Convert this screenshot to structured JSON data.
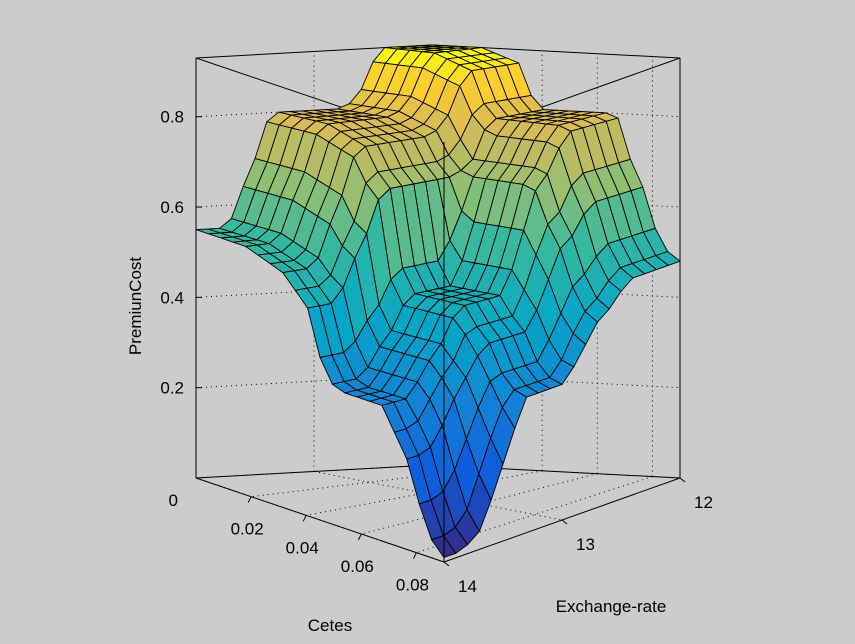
{
  "chart_data": {
    "type": "surface",
    "title": "",
    "xlabel": "Cetes",
    "ylabel": "Exchange-rate",
    "zlabel": "PremiunCost",
    "x_ticks": [
      "0",
      "0.02",
      "0.04",
      "0.06",
      "0.08"
    ],
    "y_ticks": [
      "12",
      "13",
      "14"
    ],
    "z_ticks": [
      "0.2",
      "0.4",
      "0.6",
      "0.8"
    ],
    "x_range": [
      0,
      0.09
    ],
    "y_range": [
      12,
      14
    ],
    "z_range": [
      0,
      0.93
    ],
    "x": [
      0,
      0.0045,
      0.009,
      0.0135,
      0.018,
      0.0225,
      0.027,
      0.0315,
      0.036,
      0.0405,
      0.045,
      0.0495,
      0.054,
      0.0585,
      0.063,
      0.0675,
      0.072,
      0.0765,
      0.081,
      0.0855,
      0.09
    ],
    "y": [
      12,
      12.1,
      12.2,
      12.3,
      12.4,
      12.5,
      12.6,
      12.7,
      12.8,
      12.9,
      13,
      13.1,
      13.2,
      13.3,
      13.4,
      13.5,
      13.6,
      13.7,
      13.8,
      13.9,
      14
    ],
    "z": [
      [
        0.93,
        0.93,
        0.93,
        0.93,
        0.93,
        0.92,
        0.91,
        0.9,
        0.83,
        0.8,
        0.8,
        0.8,
        0.8,
        0.8,
        0.8,
        0.79,
        0.7,
        0.64,
        0.55,
        0.5,
        0.48
      ],
      [
        0.93,
        0.93,
        0.93,
        0.93,
        0.93,
        0.92,
        0.91,
        0.9,
        0.83,
        0.8,
        0.8,
        0.8,
        0.8,
        0.8,
        0.8,
        0.79,
        0.7,
        0.64,
        0.55,
        0.5,
        0.48
      ],
      [
        0.93,
        0.93,
        0.93,
        0.93,
        0.93,
        0.92,
        0.91,
        0.9,
        0.83,
        0.8,
        0.8,
        0.8,
        0.8,
        0.8,
        0.8,
        0.79,
        0.7,
        0.64,
        0.55,
        0.5,
        0.48
      ],
      [
        0.93,
        0.93,
        0.93,
        0.93,
        0.93,
        0.92,
        0.91,
        0.9,
        0.83,
        0.8,
        0.8,
        0.8,
        0.8,
        0.8,
        0.8,
        0.79,
        0.7,
        0.64,
        0.55,
        0.5,
        0.48
      ],
      [
        0.93,
        0.93,
        0.93,
        0.93,
        0.93,
        0.92,
        0.91,
        0.9,
        0.83,
        0.8,
        0.8,
        0.8,
        0.8,
        0.8,
        0.8,
        0.79,
        0.7,
        0.64,
        0.55,
        0.5,
        0.48
      ],
      [
        0.9,
        0.9,
        0.9,
        0.9,
        0.9,
        0.89,
        0.88,
        0.87,
        0.81,
        0.78,
        0.77,
        0.77,
        0.77,
        0.77,
        0.77,
        0.76,
        0.68,
        0.62,
        0.53,
        0.48,
        0.46
      ],
      [
        0.84,
        0.84,
        0.84,
        0.84,
        0.84,
        0.83,
        0.82,
        0.81,
        0.76,
        0.72,
        0.72,
        0.72,
        0.72,
        0.72,
        0.72,
        0.71,
        0.63,
        0.58,
        0.5,
        0.45,
        0.43
      ],
      [
        0.81,
        0.81,
        0.81,
        0.81,
        0.81,
        0.8,
        0.79,
        0.78,
        0.73,
        0.7,
        0.69,
        0.69,
        0.69,
        0.69,
        0.69,
        0.68,
        0.61,
        0.56,
        0.48,
        0.43,
        0.41
      ],
      [
        0.8,
        0.8,
        0.8,
        0.8,
        0.8,
        0.79,
        0.78,
        0.77,
        0.72,
        0.69,
        0.62,
        0.6,
        0.6,
        0.6,
        0.6,
        0.6,
        0.55,
        0.5,
        0.43,
        0.39,
        0.37
      ],
      [
        0.8,
        0.8,
        0.8,
        0.8,
        0.8,
        0.79,
        0.78,
        0.77,
        0.72,
        0.69,
        0.56,
        0.52,
        0.52,
        0.52,
        0.52,
        0.52,
        0.48,
        0.44,
        0.38,
        0.34,
        0.33
      ],
      [
        0.8,
        0.8,
        0.8,
        0.8,
        0.8,
        0.79,
        0.78,
        0.77,
        0.72,
        0.69,
        0.52,
        0.47,
        0.47,
        0.47,
        0.47,
        0.47,
        0.43,
        0.4,
        0.34,
        0.31,
        0.3
      ],
      [
        0.8,
        0.8,
        0.8,
        0.8,
        0.8,
        0.79,
        0.78,
        0.77,
        0.72,
        0.69,
        0.52,
        0.47,
        0.47,
        0.47,
        0.47,
        0.47,
        0.43,
        0.4,
        0.34,
        0.31,
        0.3
      ],
      [
        0.8,
        0.8,
        0.8,
        0.8,
        0.8,
        0.79,
        0.78,
        0.77,
        0.72,
        0.69,
        0.52,
        0.47,
        0.47,
        0.47,
        0.47,
        0.47,
        0.43,
        0.4,
        0.34,
        0.31,
        0.3
      ],
      [
        0.8,
        0.8,
        0.8,
        0.8,
        0.8,
        0.79,
        0.78,
        0.77,
        0.72,
        0.69,
        0.52,
        0.47,
        0.47,
        0.47,
        0.47,
        0.47,
        0.43,
        0.4,
        0.34,
        0.31,
        0.3
      ],
      [
        0.78,
        0.78,
        0.78,
        0.78,
        0.78,
        0.77,
        0.76,
        0.75,
        0.7,
        0.67,
        0.5,
        0.45,
        0.45,
        0.45,
        0.45,
        0.45,
        0.42,
        0.38,
        0.33,
        0.28,
        0.24
      ],
      [
        0.7,
        0.7,
        0.7,
        0.7,
        0.7,
        0.69,
        0.68,
        0.67,
        0.62,
        0.6,
        0.45,
        0.4,
        0.4,
        0.4,
        0.4,
        0.4,
        0.37,
        0.34,
        0.28,
        0.22,
        0.17
      ],
      [
        0.64,
        0.64,
        0.64,
        0.64,
        0.64,
        0.63,
        0.62,
        0.61,
        0.57,
        0.55,
        0.42,
        0.37,
        0.37,
        0.37,
        0.37,
        0.37,
        0.34,
        0.3,
        0.22,
        0.15,
        0.1
      ],
      [
        0.57,
        0.57,
        0.57,
        0.57,
        0.57,
        0.56,
        0.55,
        0.54,
        0.51,
        0.49,
        0.38,
        0.33,
        0.33,
        0.33,
        0.33,
        0.33,
        0.3,
        0.25,
        0.16,
        0.08,
        0.04
      ],
      [
        0.55,
        0.55,
        0.55,
        0.55,
        0.55,
        0.54,
        0.53,
        0.52,
        0.49,
        0.46,
        0.36,
        0.31,
        0.3,
        0.3,
        0.3,
        0.3,
        0.26,
        0.21,
        0.12,
        0.05,
        0.02
      ],
      [
        0.55,
        0.55,
        0.55,
        0.55,
        0.55,
        0.54,
        0.53,
        0.52,
        0.49,
        0.46,
        0.36,
        0.31,
        0.3,
        0.3,
        0.3,
        0.3,
        0.25,
        0.2,
        0.11,
        0.04,
        0.01
      ],
      [
        0.55,
        0.55,
        0.55,
        0.55,
        0.55,
        0.54,
        0.53,
        0.52,
        0.49,
        0.46,
        0.36,
        0.31,
        0.3,
        0.3,
        0.3,
        0.3,
        0.25,
        0.2,
        0.11,
        0.04,
        0.01
      ]
    ],
    "colormap": "parula",
    "grid": true,
    "legend": "none"
  }
}
